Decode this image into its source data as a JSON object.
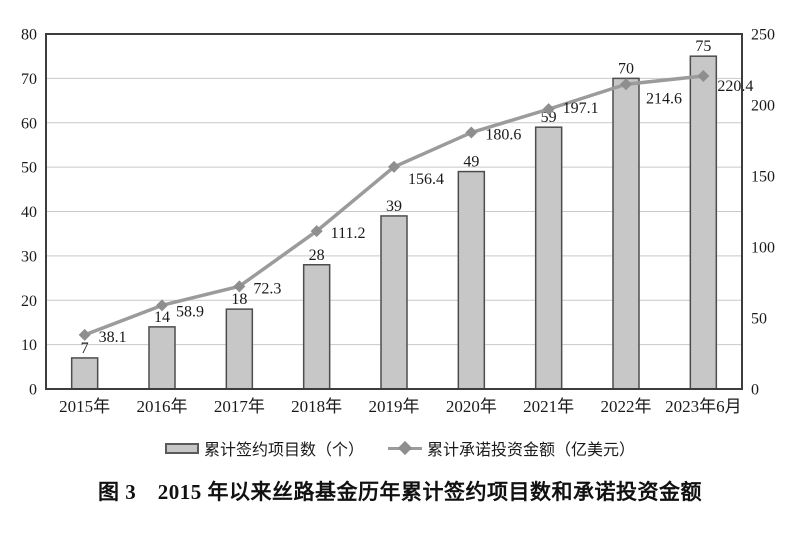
{
  "figure": {
    "caption": "图 3　2015 年以来丝路基金历年累计签约项目数和承诺投资金额"
  },
  "legend": {
    "bar_label": "累计签约项目数（个）",
    "line_label": "累计承诺投资金额（亿美元）"
  },
  "chart_data": {
    "type": "bar",
    "subtype": "bar+line dual axis",
    "categories": [
      "2015年",
      "2016年",
      "2017年",
      "2018年",
      "2019年",
      "2020年",
      "2021年",
      "2022年",
      "2023年6月"
    ],
    "series": [
      {
        "name": "累计签约项目数（个）",
        "type": "bar",
        "axis": "left",
        "values": [
          7,
          14,
          18,
          28,
          39,
          49,
          59,
          70,
          75
        ]
      },
      {
        "name": "累计承诺投资金额（亿美元）",
        "type": "line",
        "axis": "right",
        "marker": "diamond",
        "values": [
          38.1,
          58.9,
          72.3,
          111.2,
          156.4,
          180.6,
          197.1,
          214.6,
          220.4
        ]
      }
    ],
    "left_axis": {
      "min": 0,
      "max": 80,
      "ticks": [
        0,
        10,
        20,
        30,
        40,
        50,
        60,
        70,
        80
      ]
    },
    "right_axis": {
      "min": 0,
      "max": 250,
      "ticks": [
        0,
        50,
        100,
        150,
        200,
        250
      ]
    },
    "grid": true,
    "legend_position": "bottom",
    "title": "图 3　2015 年以来丝路基金历年累计签约项目数和承诺投资金额",
    "colors": {
      "bar_fill": "#c7c7c7",
      "bar_stroke": "#4d4d4d",
      "line": "#9b9b9b",
      "marker": "#8e8e8e",
      "grid": "#c9c9c9",
      "frame": "#3d3d3d",
      "text": "#1a1a1a"
    }
  }
}
